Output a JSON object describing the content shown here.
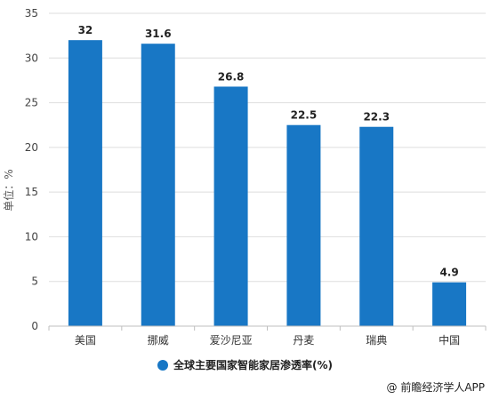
{
  "chart_data": {
    "type": "bar",
    "categories": [
      "美国",
      "挪威",
      "爱沙尼亚",
      "丹麦",
      "瑞典",
      "中国"
    ],
    "series": [
      {
        "name": "全球主要国家智能家居渗透率(%)",
        "values": [
          32,
          31.6,
          26.8,
          22.5,
          22.3,
          4.9
        ],
        "color": "#1877C5"
      }
    ],
    "data_labels": [
      "32",
      "31.6",
      "26.8",
      "22.5",
      "22.3",
      "4.9"
    ],
    "ylabel": "单位：%",
    "ylim": [
      0,
      35
    ],
    "yticks": [
      0,
      5,
      10,
      15,
      20,
      25,
      30,
      35
    ],
    "grid": true,
    "legend_position": "bottom"
  },
  "credit": "@ 前瞻经济学人APP"
}
